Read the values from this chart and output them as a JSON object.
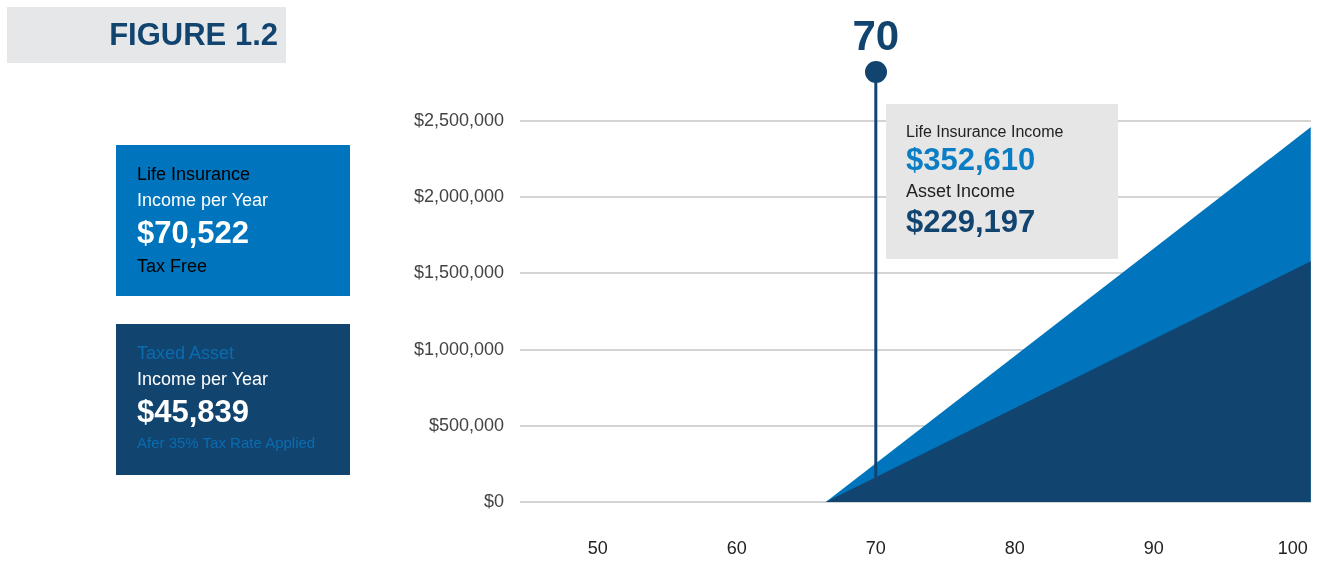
{
  "chart_data": {
    "type": "area",
    "title": "FIGURE 1.2",
    "x": [
      66.4,
      101.3
    ],
    "series": [
      {
        "color": "#0075bd",
        "values": [
          0,
          2460000
        ]
      },
      {
        "color": "#124470",
        "values": [
          0,
          1580000
        ]
      }
    ],
    "xlim": [
      44.4,
      101.3
    ],
    "xticks": [
      50,
      60,
      70,
      80,
      90,
      100
    ],
    "ylim": [
      0,
      2500000
    ],
    "yticks": [
      {
        "value": 0,
        "label": "$0"
      },
      {
        "value": 500000,
        "label": "$500,000"
      },
      {
        "value": 1000000,
        "label": "$1,000,000"
      },
      {
        "value": 1500000,
        "label": "$1,500,000"
      },
      {
        "value": 2000000,
        "label": "$2,000,000"
      },
      {
        "value": 2500000,
        "label": "$2,500,000"
      }
    ],
    "grid": "y",
    "legend": false,
    "ref_lines": [
      {
        "axis": "x",
        "value": 70,
        "label": "70",
        "color": "#124470"
      }
    ],
    "annotations": [
      "Life Insurance Income",
      "$352,610",
      "Asset Income",
      "$229,197",
      "Life Insurance",
      "Income per Year",
      "$70,522",
      "Tax Free",
      "Taxed Asset",
      "Income per Year",
      "$45,839",
      "Afer 35% Tax Rate Applied"
    ]
  }
}
